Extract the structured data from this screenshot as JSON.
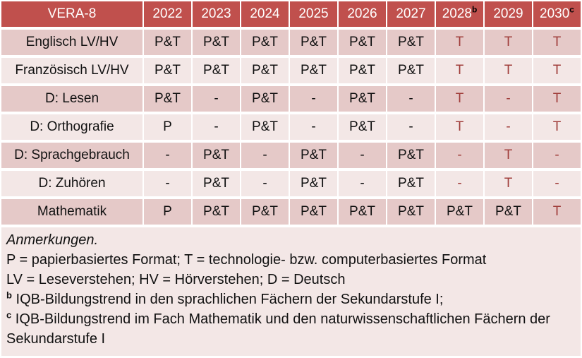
{
  "colors": {
    "header_bg": "#C0504D",
    "header_text": "#FFFFFF",
    "band_dark": "#E5C9C8",
    "band_light": "#F3E7E6",
    "notes_bg": "#F3E7E6",
    "text_black": "#1A1A1A",
    "text_red": "#A03E3B"
  },
  "table": {
    "corner_label": "VERA-8",
    "year_columns": [
      {
        "label": "2022",
        "superscript": ""
      },
      {
        "label": "2023",
        "superscript": ""
      },
      {
        "label": "2024",
        "superscript": ""
      },
      {
        "label": "2025",
        "superscript": ""
      },
      {
        "label": "2026",
        "superscript": ""
      },
      {
        "label": "2027",
        "superscript": ""
      },
      {
        "label": "2028",
        "superscript": "b"
      },
      {
        "label": "2029",
        "superscript": ""
      },
      {
        "label": "2030",
        "superscript": "c"
      }
    ],
    "rows": [
      {
        "label": "Englisch LV/HV",
        "values": [
          "P&T",
          "P&T",
          "P&T",
          "P&T",
          "P&T",
          "P&T",
          "T",
          "T",
          "T"
        ],
        "red": [
          false,
          false,
          false,
          false,
          false,
          false,
          true,
          true,
          true
        ]
      },
      {
        "label": "Französisch LV/HV",
        "values": [
          "P&T",
          "P&T",
          "P&T",
          "P&T",
          "P&T",
          "P&T",
          "T",
          "T",
          "T"
        ],
        "red": [
          false,
          false,
          false,
          false,
          false,
          false,
          true,
          true,
          true
        ]
      },
      {
        "label": "D: Lesen",
        "values": [
          "P&T",
          "-",
          "P&T",
          "-",
          "P&T",
          "-",
          "T",
          "-",
          "T"
        ],
        "red": [
          false,
          false,
          false,
          false,
          false,
          false,
          true,
          true,
          true
        ]
      },
      {
        "label": "D: Orthografie",
        "values": [
          "P",
          "-",
          "P&T",
          "-",
          "P&T",
          "-",
          "T",
          "-",
          "T"
        ],
        "red": [
          false,
          false,
          false,
          false,
          false,
          false,
          true,
          true,
          true
        ]
      },
      {
        "label": "D: Sprachgebrauch",
        "values": [
          "-",
          "P&T",
          "-",
          "P&T",
          "-",
          "P&T",
          "-",
          "T",
          "-"
        ],
        "red": [
          false,
          false,
          false,
          false,
          false,
          false,
          true,
          true,
          true
        ]
      },
      {
        "label": "D: Zuhören",
        "values": [
          "-",
          "P&T",
          "-",
          "P&T",
          "-",
          "P&T",
          "-",
          "T",
          "-"
        ],
        "red": [
          false,
          false,
          false,
          false,
          false,
          false,
          true,
          true,
          true
        ]
      },
      {
        "label": "Mathematik",
        "values": [
          "P",
          "P&T",
          "P&T",
          "P&T",
          "P&T",
          "P&T",
          "P&T",
          "P&T",
          "T"
        ],
        "red": [
          false,
          false,
          false,
          false,
          false,
          false,
          false,
          false,
          true
        ]
      }
    ]
  },
  "notes": {
    "heading": "Anmerkungen.",
    "lines": [
      {
        "sup": "",
        "text": "P = papierbasiertes Format; T = technologie- bzw. computerbasiertes Format"
      },
      {
        "sup": "",
        "text": "LV = Leseverstehen; HV = Hörverstehen; D = Deutsch"
      },
      {
        "sup": "b",
        "text": "IQB-Bildungstrend in den sprachlichen Fächern der Sekundarstufe I;"
      },
      {
        "sup": "c",
        "text": "IQB-Bildungstrend im Fach Mathematik und den naturwissenschaftlichen Fächern der Sekundarstufe I"
      }
    ]
  }
}
